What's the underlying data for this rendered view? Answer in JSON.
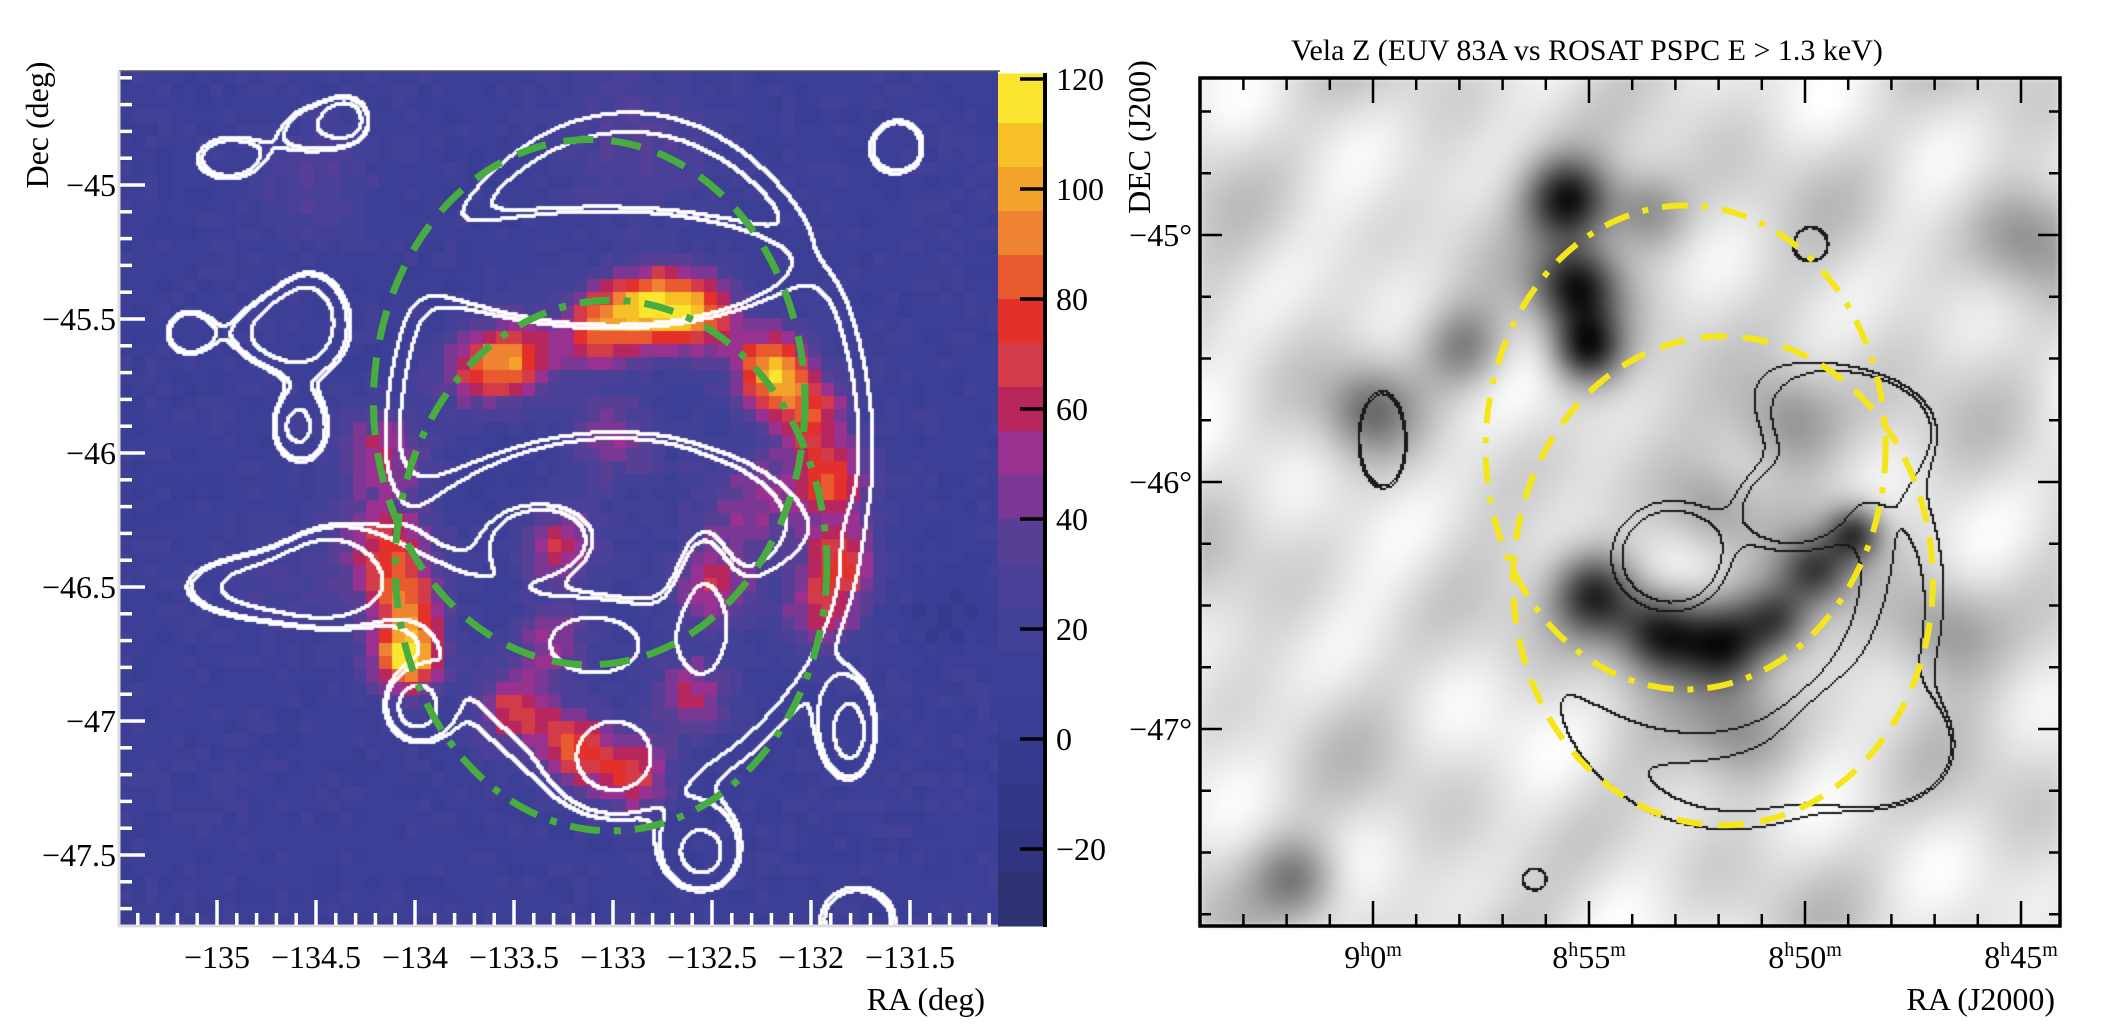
{
  "chart_data": [
    {
      "type": "heatmap",
      "panel": "left",
      "title": "",
      "xlabel": "RA (deg)",
      "ylabel": "Dec (deg)",
      "xlim": [
        -135.49,
        -131.06
      ],
      "ylim": [
        -47.75,
        -44.575
      ],
      "x_ticks": [
        -135,
        -134.5,
        -134,
        -133.5,
        -133,
        -132.5,
        -132,
        -131.5
      ],
      "x_tick_labels": [
        "−135",
        "−134.5",
        "−134",
        "−133.5",
        "−133",
        "−132.5",
        "−132",
        "−131.5"
      ],
      "y_ticks": [
        -45,
        -45.5,
        -46,
        -46.5,
        -47,
        -47.5
      ],
      "y_tick_labels": [
        "−45",
        "−45.5",
        "−46",
        "−46.5",
        "−47",
        "−47.5"
      ],
      "axis_color": "#ffffff",
      "colorbar": {
        "range": [
          -34,
          121
        ],
        "ticks": [
          120,
          100,
          80,
          60,
          40,
          20,
          0,
          -20
        ],
        "tick_labels": [
          "120",
          "100",
          "80",
          "60",
          "40",
          "20",
          "0",
          "−20"
        ],
        "colormap": [
          {
            "min": 112,
            "max": 121,
            "color": "#fae52f"
          },
          {
            "min": 104,
            "max": 112,
            "color": "#f8c027"
          },
          {
            "min": 96,
            "max": 104,
            "color": "#f3a22c"
          },
          {
            "min": 88,
            "max": 96,
            "color": "#ee8432"
          },
          {
            "min": 80,
            "max": 88,
            "color": "#e95b2f"
          },
          {
            "min": 72,
            "max": 80,
            "color": "#e3302a"
          },
          {
            "min": 64,
            "max": 72,
            "color": "#d43b48"
          },
          {
            "min": 56,
            "max": 64,
            "color": "#b8265e"
          },
          {
            "min": 48,
            "max": 56,
            "color": "#993191"
          },
          {
            "min": 40,
            "max": 48,
            "color": "#7b3794"
          },
          {
            "min": 32,
            "max": 40,
            "color": "#583f96"
          },
          {
            "min": 24,
            "max": 32,
            "color": "#4a4097"
          },
          {
            "min": 16,
            "max": 24,
            "color": "#424097"
          },
          {
            "min": 8,
            "max": 16,
            "color": "#3c3f95"
          },
          {
            "min": 0,
            "max": 8,
            "color": "#393d93"
          },
          {
            "min": -8,
            "max": 0,
            "color": "#363a8e"
          },
          {
            "min": -16,
            "max": -8,
            "color": "#343788"
          },
          {
            "min": -24,
            "max": -16,
            "color": "#313480"
          },
          {
            "min": -34,
            "max": -24,
            "color": "#2e3172"
          }
        ]
      },
      "background_value": 12,
      "intensity_components": [
        {
          "ra": -133.68,
          "dec": -45.69,
          "value": 55,
          "sigma": 0.1
        },
        {
          "ra": -133.47,
          "dec": -45.64,
          "value": 65,
          "sigma": 0.1
        },
        {
          "ra": -133.06,
          "dec": -45.53,
          "value": 75,
          "sigma": 0.1
        },
        {
          "ra": -132.8,
          "dec": -45.45,
          "value": 92,
          "sigma": 0.1
        },
        {
          "ra": -132.55,
          "dec": -45.48,
          "value": 70,
          "sigma": 0.1
        },
        {
          "ra": -132.2,
          "dec": -45.69,
          "value": 92,
          "sigma": 0.1
        },
        {
          "ra": -132.0,
          "dec": -45.85,
          "value": 60,
          "sigma": 0.1
        },
        {
          "ra": -131.9,
          "dec": -46.1,
          "value": 65,
          "sigma": 0.1
        },
        {
          "ra": -131.85,
          "dec": -46.4,
          "value": 60,
          "sigma": 0.1
        },
        {
          "ra": -131.95,
          "dec": -46.6,
          "value": 45,
          "sigma": 0.1
        },
        {
          "ra": -134.16,
          "dec": -46.0,
          "value": 45,
          "sigma": 0.12
        },
        {
          "ra": -134.15,
          "dec": -46.35,
          "value": 55,
          "sigma": 0.12
        },
        {
          "ra": -134.03,
          "dec": -46.76,
          "value": 105,
          "sigma": 0.09
        },
        {
          "ra": -134.05,
          "dec": -46.55,
          "value": 60,
          "sigma": 0.1
        },
        {
          "ra": -133.5,
          "dec": -46.95,
          "value": 55,
          "sigma": 0.1
        },
        {
          "ra": -133.2,
          "dec": -47.1,
          "value": 65,
          "sigma": 0.1
        },
        {
          "ra": -132.9,
          "dec": -47.2,
          "value": 60,
          "sigma": 0.1
        },
        {
          "ra": -133.27,
          "dec": -46.35,
          "value": 50,
          "sigma": 0.1
        },
        {
          "ra": -132.5,
          "dec": -46.5,
          "value": 50,
          "sigma": 0.1
        },
        {
          "ra": -132.6,
          "dec": -46.9,
          "value": 45,
          "sigma": 0.1
        },
        {
          "ra": -133.0,
          "dec": -45.95,
          "value": 35,
          "sigma": 0.12
        },
        {
          "ra": -133.3,
          "dec": -46.7,
          "value": 40,
          "sigma": 0.1
        },
        {
          "ra": -132.3,
          "dec": -46.2,
          "value": 35,
          "sigma": 0.15
        },
        {
          "ra": -134.5,
          "dec": -45.0,
          "value": 20,
          "sigma": 0.15
        },
        {
          "ra": -134.6,
          "dec": -46.5,
          "value": 15,
          "sigma": 0.15
        },
        {
          "ra": -132.9,
          "dec": -44.85,
          "value": 20,
          "sigma": 0.2
        },
        {
          "ra": -131.3,
          "dec": -46.6,
          "value": -15,
          "sigma": 0.1
        }
      ],
      "contours": {
        "color": "#ffffff",
        "levels": [
          1.0,
          1.08,
          1.6
        ],
        "components": [
          {
            "ra": -132.92,
            "dec": -46.01,
            "amp": 1.45,
            "sigma_ra": 1.58,
            "sigma_dec": 1.64,
            "power": 4
          },
          {
            "ra": -133.0,
            "dec": -45.32,
            "amp": -0.9,
            "sigma_ra": 0.8,
            "sigma_dec": 0.22,
            "power": 4
          },
          {
            "ra": -132.99,
            "dec": -46.25,
            "amp": -0.8,
            "sigma_ra": 0.9,
            "sigma_dec": 0.35,
            "power": 4
          },
          {
            "ra": -134.95,
            "dec": -44.9,
            "amp": 1.3,
            "sigma_ra": 0.2,
            "sigma_dec": 0.1
          },
          {
            "ra": -134.5,
            "dec": -44.78,
            "amp": 1.25,
            "sigma_ra": 0.16,
            "sigma_dec": 0.09
          },
          {
            "ra": -134.35,
            "dec": -44.75,
            "amp": 1.7,
            "sigma_ra": 0.07,
            "sigma_dec": 0.05
          },
          {
            "ra": -134.75,
            "dec": -45.55,
            "amp": 1.5,
            "sigma_ra": 0.15,
            "sigma_dec": 0.1
          },
          {
            "ra": -134.55,
            "dec": -45.5,
            "amp": 1.8,
            "sigma_ra": 0.12,
            "sigma_dec": 0.12
          },
          {
            "ra": -134.6,
            "dec": -45.9,
            "amp": 1.4,
            "sigma_ra": 0.1,
            "sigma_dec": 0.1
          },
          {
            "ra": -135.15,
            "dec": -45.55,
            "amp": 1.4,
            "sigma_ra": 0.12,
            "sigma_dec": 0.09
          },
          {
            "ra": -134.75,
            "dec": -46.5,
            "amp": 1.9,
            "sigma_ra": 0.35,
            "sigma_dec": 0.1
          },
          {
            "ra": -134.45,
            "dec": -46.45,
            "amp": 1.7,
            "sigma_ra": 0.15,
            "sigma_dec": 0.1
          },
          {
            "ra": -134.0,
            "dec": -46.95,
            "amp": 1.3,
            "sigma_ra": 0.1,
            "sigma_dec": 0.08
          },
          {
            "ra": -131.55,
            "dec": -44.85,
            "amp": 1.25,
            "sigma_ra": 0.12,
            "sigma_dec": 0.09
          },
          {
            "ra": -131.8,
            "dec": -47.05,
            "amp": 1.35,
            "sigma_ra": 0.09,
            "sigma_dec": 0.12
          },
          {
            "ra": -132.55,
            "dec": -47.5,
            "amp": 1.25,
            "sigma_ra": 0.13,
            "sigma_dec": 0.1
          },
          {
            "ra": -131.75,
            "dec": -47.75,
            "amp": 1.4,
            "sigma_ra": 0.2,
            "sigma_dec": 0.13
          },
          {
            "ra": -133.35,
            "dec": -46.32,
            "amp": 0.75,
            "sigma_ra": 0.2,
            "sigma_dec": 0.1
          },
          {
            "ra": -133.1,
            "dec": -46.7,
            "amp": 0.75,
            "sigma_ra": 0.15,
            "sigma_dec": 0.08
          },
          {
            "ra": -132.55,
            "dec": -46.55,
            "amp": 0.7,
            "sigma_ra": 0.1,
            "sigma_dec": 0.2
          },
          {
            "ra": -133.0,
            "dec": -47.15,
            "amp": 1.0,
            "sigma_ra": 0.15,
            "sigma_dec": 0.1
          }
        ]
      },
      "regions": [
        {
          "shape": "ellipse",
          "style": "dashed",
          "color": "#46ad3e",
          "ra": -133.12,
          "dec": -45.81,
          "r_ra": 1.09,
          "r_dec": 0.98
        },
        {
          "shape": "ellipse",
          "style": "dash-dot",
          "color": "#46ad3e",
          "ra": -133.01,
          "dec": -46.42,
          "r_ra": 1.09,
          "r_dec": 0.99
        }
      ]
    },
    {
      "type": "heatmap",
      "panel": "right",
      "title": "Vela Z (EUV 83A vs ROSAT PSPC E > 1.3 keV)",
      "xlabel": "RA (J2000)",
      "ylabel": "DEC (J200)",
      "colormap": "grayscale",
      "xlim_hours": [
        9.0667,
        8.7412
      ],
      "ylim": [
        -47.8,
        -44.36
      ],
      "x_ticks_hours": [
        9.0,
        8.91667,
        8.83333,
        8.75
      ],
      "x_tick_labels": [
        [
          "9",
          "h",
          "0",
          "m"
        ],
        [
          "8",
          "h",
          "55",
          "m"
        ],
        [
          "8",
          "h",
          "50",
          "m"
        ],
        [
          "8",
          "h",
          "45",
          "m"
        ]
      ],
      "y_ticks": [
        -45,
        -46,
        -47
      ],
      "y_tick_labels": [
        "−45°",
        "−46°",
        "−47°"
      ],
      "dark_components": [
        {
          "ra_h": 8.925,
          "dec": -44.85,
          "amp": 1.0,
          "sigma": 0.12
        },
        {
          "ra_h": 8.922,
          "dec": -45.2,
          "amp": 1.0,
          "sigma": 0.12
        },
        {
          "ra_h": 8.918,
          "dec": -45.45,
          "amp": 0.9,
          "sigma": 0.1
        },
        {
          "ra_h": 8.895,
          "dec": -44.9,
          "amp": 0.5,
          "sigma": 0.12
        },
        {
          "ra_h": 8.915,
          "dec": -46.45,
          "amp": 0.9,
          "sigma": 0.12
        },
        {
          "ra_h": 8.89,
          "dec": -46.6,
          "amp": 1.0,
          "sigma": 0.12
        },
        {
          "ra_h": 8.865,
          "dec": -46.65,
          "amp": 0.9,
          "sigma": 0.12
        },
        {
          "ra_h": 8.845,
          "dec": -46.55,
          "amp": 0.7,
          "sigma": 0.1
        },
        {
          "ra_h": 8.83,
          "dec": -46.35,
          "amp": 0.7,
          "sigma": 0.1
        },
        {
          "ra_h": 8.815,
          "dec": -46.2,
          "amp": 0.8,
          "sigma": 0.08
        },
        {
          "ra_h": 8.965,
          "dec": -45.45,
          "amp": 0.5,
          "sigma": 0.12
        },
        {
          "ra_h": 9.002,
          "dec": -45.7,
          "amp": 0.45,
          "sigma": 0.12
        },
        {
          "ra_h": 8.84,
          "dec": -45.75,
          "amp": 0.5,
          "sigma": 0.15
        },
        {
          "ra_h": 8.86,
          "dec": -47.0,
          "amp": 0.4,
          "sigma": 0.15
        },
        {
          "ra_h": 8.78,
          "dec": -46.6,
          "amp": 0.4,
          "sigma": 0.15
        },
        {
          "ra_h": 9.03,
          "dec": -47.6,
          "amp": 0.5,
          "sigma": 0.12
        },
        {
          "ra_h": 8.75,
          "dec": -45.0,
          "amp": 0.4,
          "sigma": 0.15
        },
        {
          "ra_h": 8.87,
          "dec": -46.1,
          "amp": 0.3,
          "sigma": 0.12
        }
      ],
      "contours": {
        "color": "#1a1a1a",
        "levels": [
          1.0,
          1.06
        ],
        "components": [
          {
            "ra_h": 8.864,
            "dec": -46.42,
            "amp": 1.4,
            "sigma_ra_min": 6.8,
            "sigma_dec": 1.32,
            "power": 4
          },
          {
            "ra_h": 8.87,
            "dec": -46.35,
            "amp": -0.55,
            "sigma_ra_min": 4.2,
            "sigma_dec": 0.8,
            "power": 4
          },
          {
            "ra_h": 8.81,
            "dec": -45.75,
            "amp": 0.55,
            "sigma_ra_min": 1.2,
            "sigma_dec": 0.12
          },
          {
            "ra_h": 8.885,
            "dec": -46.3,
            "amp": 0.45,
            "sigma_ra_min": 0.9,
            "sigma_dec": 0.15
          },
          {
            "ra_h": 8.84,
            "dec": -46.1,
            "amp": 0.4,
            "sigma_ra_min": 0.8,
            "sigma_dec": 0.12
          },
          {
            "ra_h": 8.997,
            "dec": -45.82,
            "amp": 1.6,
            "sigma_ra_min": 0.5,
            "sigma_dec": 0.18
          },
          {
            "ra_h": 8.831,
            "dec": -45.03,
            "amp": 1.3,
            "sigma_ra_min": 0.35,
            "sigma_dec": 0.06
          },
          {
            "ra_h": 8.938,
            "dec": -47.61,
            "amp": 1.3,
            "sigma_ra_min": 0.25,
            "sigma_dec": 0.04
          },
          {
            "ra_h": 8.8,
            "dec": -47.1,
            "amp": 1.2,
            "sigma_ra_min": 0.9,
            "sigma_dec": 0.12
          }
        ]
      },
      "regions": [
        {
          "shape": "ellipse",
          "style": "dash-dot",
          "color": "#f5e61a",
          "ra_h": 8.8794,
          "dec": -45.86,
          "r_ra_min": 4.63,
          "r_dec": 0.98
        },
        {
          "shape": "ellipse",
          "style": "dashed",
          "color": "#f5e61a",
          "ra_h": 8.865,
          "dec": -46.4,
          "r_ra_min": 4.86,
          "r_dec": 0.99
        }
      ]
    }
  ]
}
